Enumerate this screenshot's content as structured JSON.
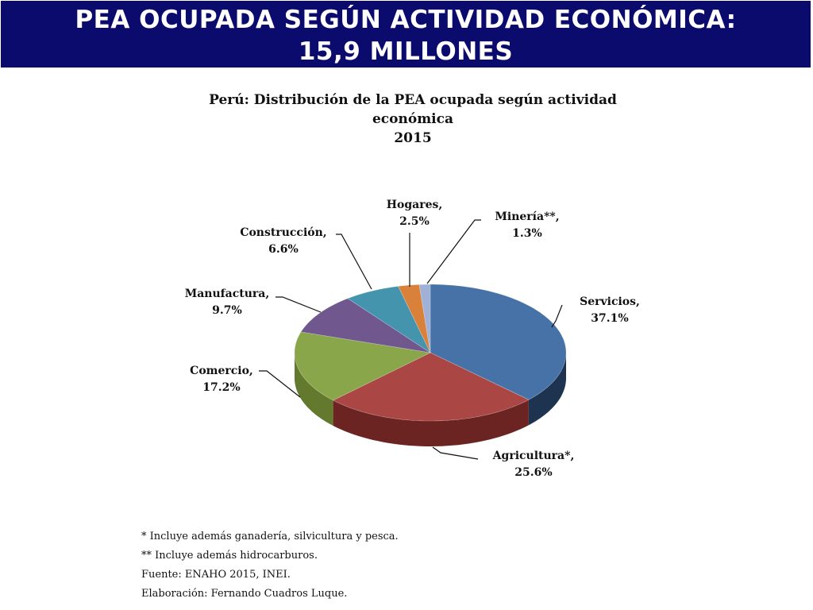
{
  "header": {
    "title_line1": "PEA OCUPADA SEGÚN ACTIVIDAD ECONÓMICA:",
    "title_line2": "15,9 MILLONES"
  },
  "chart_data": {
    "type": "pie",
    "title_lines": [
      "Perú: Distribución de la PEA ocupada según actividad",
      "económica",
      "2015"
    ],
    "unit": "%",
    "slices": [
      {
        "name": "Servicios,",
        "value": 37.1,
        "label": "37.1%",
        "color": "#4672a8",
        "side_color": "#1e3350"
      },
      {
        "name": "Agricultura*,",
        "value": 25.6,
        "label": "25.6%",
        "color": "#aa4644",
        "side_color": "#6b2422"
      },
      {
        "name": "Comercio,",
        "value": 17.2,
        "label": "17.2%",
        "color": "#8aa64a",
        "side_color": "#62792e"
      },
      {
        "name": "Manufactura,",
        "value": 9.7,
        "label": "9.7%",
        "color": "#70588f",
        "side_color": "#4a3a61"
      },
      {
        "name": "Construcción,",
        "value": 6.6,
        "label": "6.6%",
        "color": "#4494ae",
        "side_color": "#2b6a80"
      },
      {
        "name": "Hogares,",
        "value": 2.5,
        "label": "2.5%",
        "color": "#d9803a",
        "side_color": "#9a5520"
      },
      {
        "name": "Minería**,",
        "value": 1.3,
        "label": "1.3%",
        "color": "#9fb1d6",
        "side_color": "#6e80a6"
      }
    ]
  },
  "footnotes": [
    "* Incluye además ganadería, silvicultura y pesca.",
    "** Incluye además hidrocarburos.",
    "Fuente: ENAHO 2015, INEI.",
    "Elaboración: Fernando Cuadros Luque."
  ]
}
